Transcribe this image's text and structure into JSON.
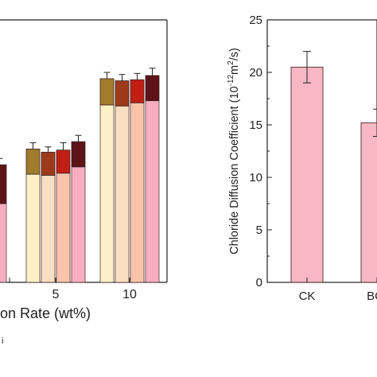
{
  "chart_data": [
    {
      "type": "bar",
      "xlabel": "on Rate  (wt%)",
      "footnote": "i",
      "categories": [
        "",
        "5",
        "10"
      ],
      "stacked": true,
      "bar_colors": [
        "#fcf1c6",
        "#f8dfc1",
        "#fbc4aa",
        "#f9aec0"
      ],
      "cap_colors": [
        "#a07c2c",
        "#9e3a1a",
        "#c11f14",
        "#5d1318"
      ],
      "groups": [
        {
          "category": "",
          "bars": [
            {
              "value": 7.5,
              "total": 11.2,
              "err": 0.6
            }
          ]
        },
        {
          "category": "5",
          "bars": [
            {
              "value": 10.3,
              "total": 12.7,
              "err": 0.6
            },
            {
              "value": 10.2,
              "total": 12.4,
              "err": 0.5
            },
            {
              "value": 10.4,
              "total": 12.6,
              "err": 0.7
            },
            {
              "value": 11.0,
              "total": 13.4,
              "err": 0.6
            }
          ]
        },
        {
          "category": "10",
          "bars": [
            {
              "value": 16.9,
              "total": 19.4,
              "err": 0.6
            },
            {
              "value": 16.8,
              "total": 19.2,
              "err": 0.6
            },
            {
              "value": 17.1,
              "total": 19.3,
              "err": 0.6
            },
            {
              "value": 17.3,
              "total": 19.7,
              "err": 0.7
            }
          ]
        }
      ],
      "ylim": [
        0,
        25
      ]
    },
    {
      "type": "bar",
      "ylabel_main": "Chloride Diffusion Coefficient (10",
      "ylabel_sup": "-12",
      "ylabel_mid": "m",
      "ylabel_sup2": "2",
      "ylabel_end": "/s)",
      "categories": [
        "CK",
        "BC-"
      ],
      "values": [
        20.5,
        15.2
      ],
      "errors": [
        1.5,
        1.3
      ],
      "ylim": [
        0,
        25
      ],
      "yticks": [
        "0",
        "5",
        "10",
        "15",
        "20",
        "25"
      ],
      "bar_color": "#f8b7c5",
      "bar_edge": "#4a2a2a"
    }
  ]
}
